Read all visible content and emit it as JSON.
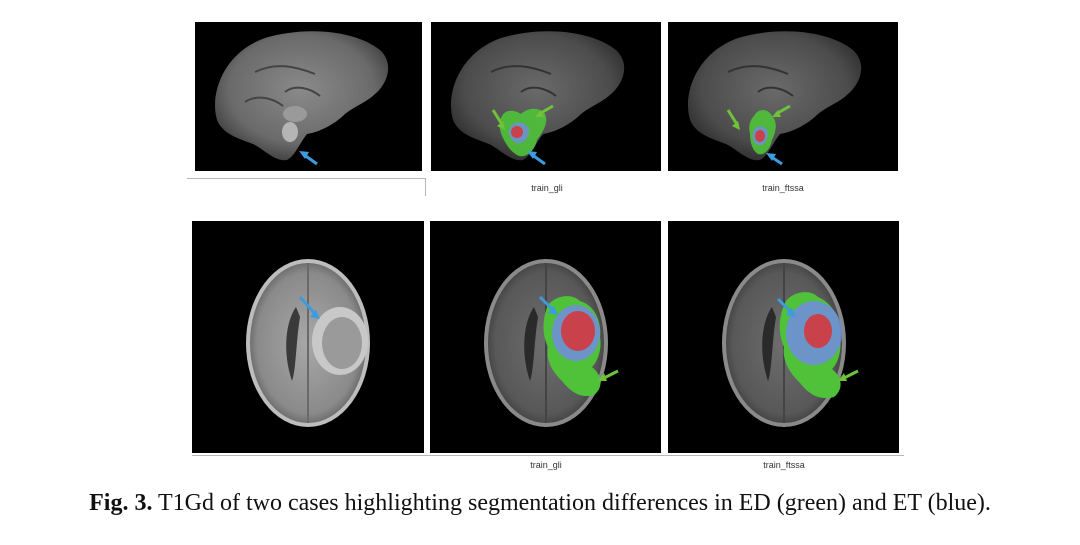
{
  "figure": {
    "caption_label": "Fig. 3.",
    "caption_text": "T1Gd of two cases highlighting segmentation differences in ED (green) and ET (blue).",
    "colors": {
      "ED": "#4fc23a",
      "ET": "#6f8fd8",
      "core": "#c9414a",
      "arrow_blue": "#3d9be0",
      "arrow_green": "#6fc23a"
    },
    "rows": [
      {
        "panels": [
          {
            "view": "sagittal",
            "overlay": "none",
            "label": ""
          },
          {
            "view": "sagittal",
            "overlay": "segmentation",
            "label": "train_gli"
          },
          {
            "view": "sagittal",
            "overlay": "segmentation",
            "label": "train_ftssa"
          }
        ]
      },
      {
        "panels": [
          {
            "view": "axial",
            "overlay": "none",
            "label": ""
          },
          {
            "view": "axial",
            "overlay": "segmentation",
            "label": "train_gli"
          },
          {
            "view": "axial",
            "overlay": "segmentation",
            "label": "train_ftssa"
          }
        ]
      }
    ]
  }
}
